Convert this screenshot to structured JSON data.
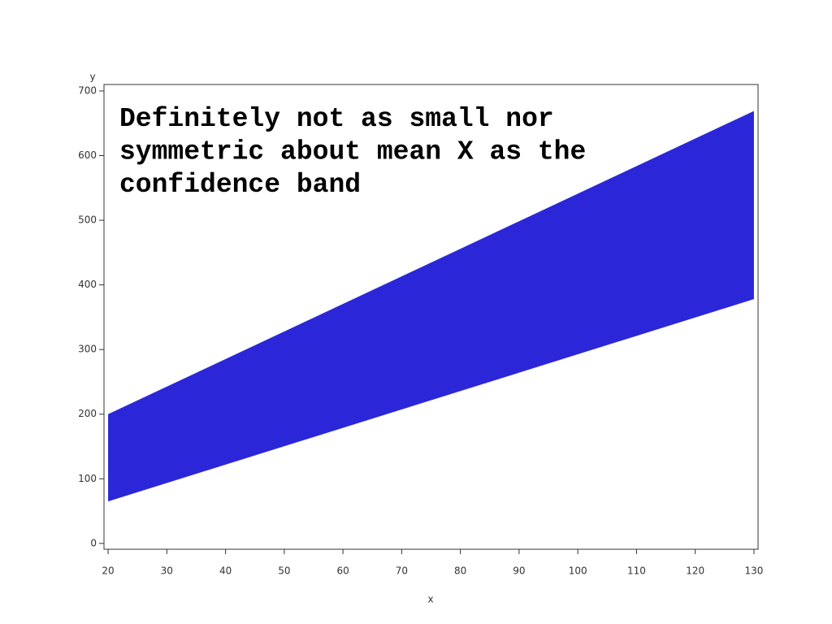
{
  "chart_data": {
    "type": "band",
    "annotation": [
      "Definitely not as small nor",
      "symmetric about mean X as the",
      "confidence band"
    ],
    "xlabel": "x",
    "ylabel": "y",
    "x": [
      20,
      130
    ],
    "lower": [
      65,
      378
    ],
    "upper": [
      200,
      669
    ],
    "color": "#2b27d9",
    "xlim": [
      19.3,
      130.7
    ],
    "xticks": [
      20,
      30,
      40,
      50,
      60,
      70,
      80,
      90,
      100,
      110,
      120,
      130
    ],
    "ylim": [
      -9,
      710
    ],
    "yticks": [
      0,
      100,
      200,
      300,
      400,
      500,
      600,
      700
    ]
  }
}
